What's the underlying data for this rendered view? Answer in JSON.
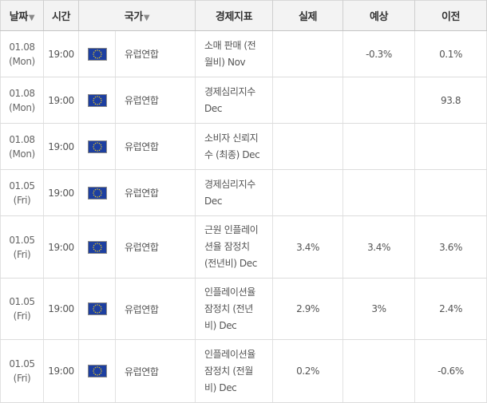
{
  "columns": {
    "date": "날짜",
    "time": "시간",
    "country": "국가",
    "indicator": "경제지표",
    "actual": "실제",
    "forecast": "예상",
    "previous": "이전",
    "sort_arrow": "▼"
  },
  "rows": [
    {
      "date": "01.08",
      "day": "(Mon)",
      "time": "19:00",
      "country": "유럽연합",
      "indicator": [
        "소매 판매 (전",
        "월비) Nov"
      ],
      "actual": "",
      "forecast": "-0.3%",
      "previous": "0.1%"
    },
    {
      "date": "01.08",
      "day": "(Mon)",
      "time": "19:00",
      "country": "유럽연합",
      "indicator": [
        "경제심리지수",
        "Dec"
      ],
      "actual": "",
      "forecast": "",
      "previous": "93.8"
    },
    {
      "date": "01.08",
      "day": "(Mon)",
      "time": "19:00",
      "country": "유럽연합",
      "indicator": [
        "소비자 신뢰지",
        "수 (최종) Dec"
      ],
      "actual": "",
      "forecast": "",
      "previous": ""
    },
    {
      "date": "01.05",
      "day": "(Fri)",
      "time": "19:00",
      "country": "유럽연합",
      "indicator": [
        "경제심리지수",
        "Dec"
      ],
      "actual": "",
      "forecast": "",
      "previous": ""
    },
    {
      "date": "01.05",
      "day": "(Fri)",
      "time": "19:00",
      "country": "유럽연합",
      "indicator": [
        "근원 인플레이",
        "션율 잠정치",
        "(전년비) Dec"
      ],
      "actual": "3.4%",
      "forecast": "3.4%",
      "previous": "3.6%"
    },
    {
      "date": "01.05",
      "day": "(Fri)",
      "time": "19:00",
      "country": "유럽연합",
      "indicator": [
        "인플레이션율",
        "잠정치 (전년",
        "비) Dec"
      ],
      "actual": "2.9%",
      "forecast": "3%",
      "previous": "2.4%"
    },
    {
      "date": "01.05",
      "day": "(Fri)",
      "time": "19:00",
      "country": "유럽연합",
      "indicator": [
        "인플레이션율",
        "잠정치 (전월",
        "비) Dec"
      ],
      "actual": "0.2%",
      "forecast": "",
      "previous": "-0.6%"
    }
  ],
  "flag_icon": "eu-flag-icon",
  "colors": {
    "header_bg": "#f3f3f3",
    "flag_blue": "#1d3fa0",
    "flag_stars": "#f7d117"
  }
}
